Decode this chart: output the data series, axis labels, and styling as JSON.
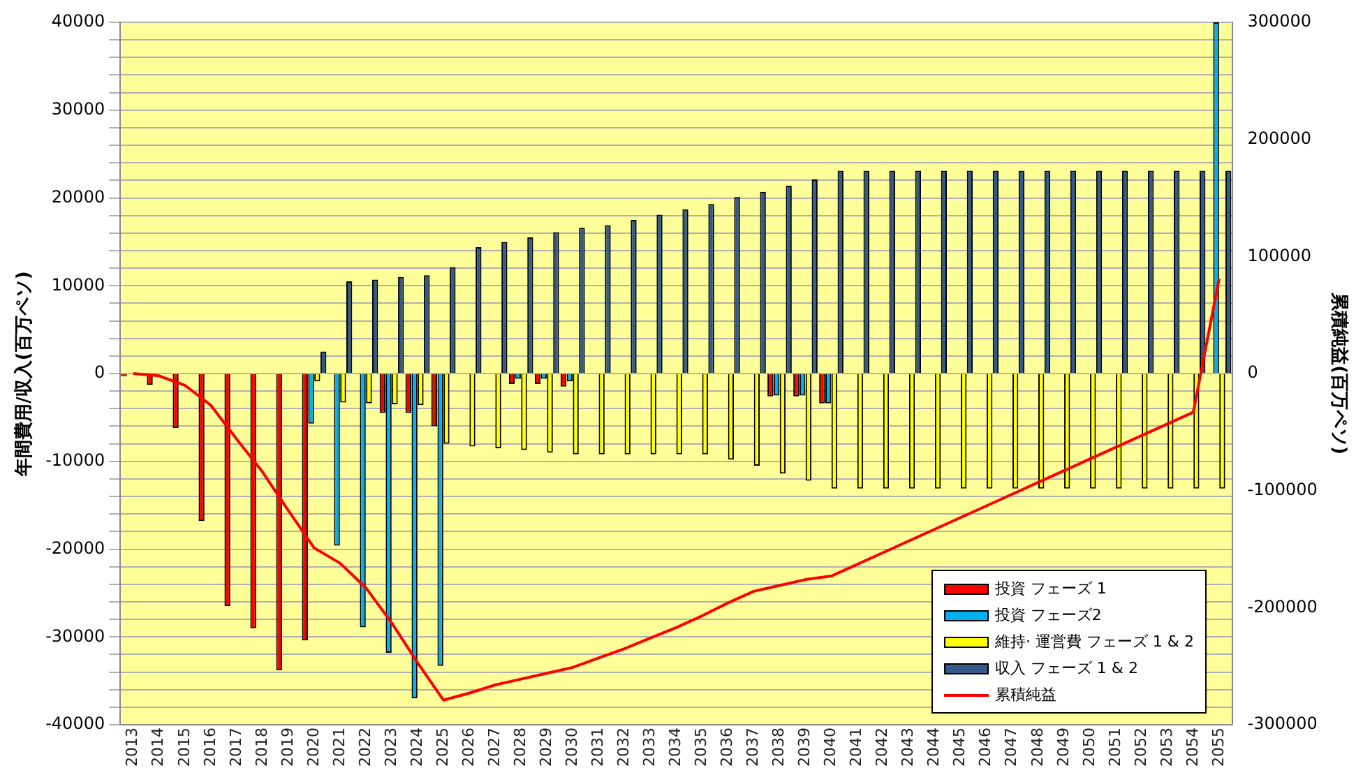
{
  "chart_data": {
    "type": "bar",
    "ylabel": "年間費用/収入(百万ペソ)",
    "y2label": "累積純益(百万ペソ)",
    "categories": [
      "2013",
      "2014",
      "2015",
      "2016",
      "2017",
      "2018",
      "2019",
      "2020",
      "2021",
      "2022",
      "2023",
      "2024",
      "2025",
      "2026",
      "2027",
      "2028",
      "2029",
      "2030",
      "2031",
      "2032",
      "2033",
      "2034",
      "2035",
      "2036",
      "2037",
      "2038",
      "2039",
      "2040",
      "2041",
      "2042",
      "2043",
      "2044",
      "2045",
      "2046",
      "2047",
      "2048",
      "2049",
      "2050",
      "2051",
      "2052",
      "2053",
      "2054",
      "2055"
    ],
    "series": [
      {
        "name": "投資 フェーズ 1",
        "color": "#ff0000",
        "values": [
          -300,
          -1300,
          -6200,
          -16800,
          -26500,
          -29000,
          -33800,
          -30400,
          0,
          0,
          -4500,
          -4500,
          -6000,
          0,
          0,
          -1200,
          -1200,
          -1500,
          0,
          0,
          0,
          0,
          0,
          0,
          0,
          -2600,
          -2600,
          -3400,
          0,
          0,
          0,
          0,
          0,
          0,
          0,
          0,
          0,
          0,
          0,
          0,
          0,
          0,
          0
        ]
      },
      {
        "name": "投資 フェーズ2",
        "color": "#00b0f0",
        "values": [
          0,
          0,
          0,
          0,
          0,
          0,
          0,
          -5700,
          -19600,
          -28900,
          -31800,
          -37000,
          -33300,
          0,
          0,
          -600,
          -600,
          -900,
          0,
          0,
          0,
          0,
          0,
          0,
          0,
          -2500,
          -2500,
          -3400,
          0,
          0,
          0,
          0,
          0,
          0,
          0,
          0,
          0,
          0,
          0,
          0,
          0,
          0,
          40000
        ]
      },
      {
        "name": "維持· 運営費 フェーズ 1 & 2",
        "color": "#ffff00",
        "values": [
          0,
          0,
          0,
          0,
          0,
          0,
          0,
          -900,
          -3300,
          -3400,
          -3500,
          -3600,
          -8000,
          -8300,
          -8500,
          -8700,
          -9000,
          -9200,
          -9200,
          -9200,
          -9200,
          -9200,
          -9200,
          -9800,
          -10500,
          -11400,
          -12200,
          -13100,
          -13100,
          -13100,
          -13100,
          -13100,
          -13100,
          -13100,
          -13100,
          -13100,
          -13100,
          -13100,
          -13100,
          -13100,
          -13100,
          -13100,
          -13100
        ]
      },
      {
        "name": "収入 フェーズ 1 & 2",
        "color": "#335a8a",
        "values": [
          0,
          0,
          0,
          0,
          0,
          0,
          0,
          2500,
          10500,
          10700,
          11000,
          11200,
          12100,
          14400,
          15000,
          15500,
          16100,
          16600,
          16900,
          17500,
          18100,
          18700,
          19300,
          20100,
          20700,
          21400,
          22100,
          23100,
          23100,
          23100,
          23100,
          23100,
          23100,
          23100,
          23100,
          23100,
          23100,
          23100,
          23100,
          23100,
          23100,
          23100,
          23100
        ]
      },
      {
        "name": "累積純益",
        "type": "line",
        "axis": "y2",
        "color": "#ff0000",
        "values": [
          0,
          -2000,
          -10000,
          -27000,
          -56000,
          -84000,
          -117000,
          -149000,
          -162000,
          -183000,
          -213000,
          -247000,
          -279000,
          -273000,
          -266000,
          -261000,
          -256000,
          -251000,
          -243000,
          -235000,
          -226000,
          -217000,
          -207000,
          -196000,
          -186000,
          -181000,
          -176000,
          -173000,
          -163000,
          -153000,
          -143000,
          -133000,
          -123000,
          -113000,
          -103000,
          -93000,
          -83000,
          -73000,
          -63000,
          -53000,
          -43000,
          -33000,
          81000
        ]
      }
    ],
    "ylim": [
      -40000,
      40000
    ],
    "yticks": [
      -40000,
      {
        "value": -38000,
        "label": null
      },
      {
        "value": -36000,
        "label": null
      },
      {
        "value": -34000,
        "label": null
      },
      {
        "value": -32000,
        "label": null
      },
      -30000,
      {
        "value": -28000,
        "label": null
      },
      {
        "value": -26000,
        "label": null
      },
      {
        "value": -24000,
        "label": null
      },
      {
        "value": -22000,
        "label": null
      },
      -20000,
      {
        "value": -18000,
        "label": null
      },
      {
        "value": -16000,
        "label": null
      },
      {
        "value": -14000,
        "label": null
      },
      {
        "value": -12000,
        "label": null
      },
      -10000,
      {
        "value": -8000,
        "label": null
      },
      {
        "value": -6000,
        "label": null
      },
      {
        "value": -4000,
        "label": null
      },
      {
        "value": -2000,
        "label": null
      },
      0,
      {
        "value": 2000,
        "label": null
      },
      {
        "value": 4000,
        "label": null
      },
      {
        "value": 6000,
        "label": null
      },
      {
        "value": 8000,
        "label": null
      },
      10000,
      {
        "value": 12000,
        "label": null
      },
      {
        "value": 14000,
        "label": null
      },
      {
        "value": 16000,
        "label": null
      },
      {
        "value": 18000,
        "label": null
      },
      20000,
      {
        "value": 22000,
        "label": null
      },
      {
        "value": 24000,
        "label": null
      },
      {
        "value": 26000,
        "label": null
      },
      {
        "value": 28000,
        "label": null
      },
      30000,
      {
        "value": 32000,
        "label": null
      },
      {
        "value": 34000,
        "label": null
      },
      {
        "value": 36000,
        "label": null
      },
      {
        "value": 38000,
        "label": null
      },
      40000
    ],
    "y2lim": [
      -300000,
      300000
    ],
    "y2ticks": [
      -300000,
      -200000,
      -100000,
      0,
      100000,
      200000,
      300000
    ],
    "grid": "y",
    "legend": "bottom right",
    "marker": "none",
    "line_style": "solid"
  }
}
